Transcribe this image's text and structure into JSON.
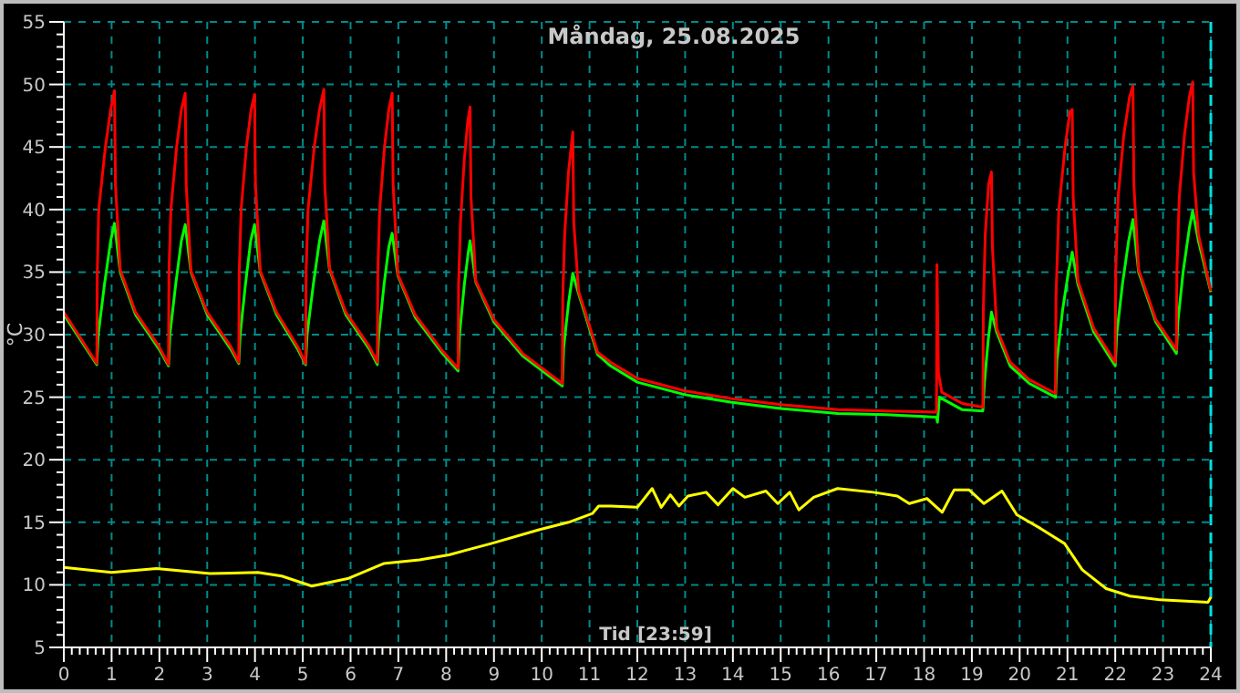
{
  "chart_data": {
    "type": "line",
    "title": "Måndag, 25.08.2025",
    "xlabel": "Tid [23:59]",
    "ylabel": "°C",
    "xlim": [
      0,
      24
    ],
    "xticks": [
      0,
      1,
      2,
      3,
      4,
      5,
      6,
      7,
      8,
      9,
      10,
      11,
      12,
      13,
      14,
      15,
      16,
      17,
      18,
      19,
      20,
      21,
      22,
      23,
      24
    ],
    "ylim": [
      5,
      55
    ],
    "yticks": [
      5,
      10,
      15,
      20,
      25,
      30,
      35,
      40,
      45,
      50,
      55
    ],
    "grid": true,
    "line_style": "solid",
    "marker": "none",
    "ref_lines": [
      {
        "axis": "x",
        "value": 24,
        "color": "#00e0e0",
        "line_style": "dashed"
      }
    ],
    "series": [
      {
        "color": "#ffff00",
        "x": [
          0,
          1.0,
          1.94,
          3.06,
          4.06,
          4.56,
          5.19,
          5.94,
          6.69,
          7.44,
          8.06,
          8.94,
          9.94,
          10.56,
          11.06,
          11.19,
          11.44,
          12.0,
          12.31,
          12.5,
          12.69,
          12.87,
          13.06,
          13.44,
          13.69,
          14.0,
          14.25,
          14.69,
          14.94,
          15.19,
          15.38,
          15.69,
          16.19,
          16.94,
          17.44,
          17.69,
          18.06,
          18.38,
          18.63,
          18.94,
          19.25,
          19.63,
          19.94,
          20.44,
          20.94,
          21.31,
          21.81,
          22.31,
          22.94,
          23.94,
          24.0
        ],
        "values": [
          11.4,
          11.0,
          11.3,
          10.9,
          11.0,
          10.7,
          9.9,
          10.5,
          11.7,
          12.0,
          12.4,
          13.3,
          14.4,
          15.0,
          15.7,
          16.3,
          16.3,
          16.2,
          17.7,
          16.2,
          17.2,
          16.3,
          17.1,
          17.4,
          16.4,
          17.7,
          17.0,
          17.5,
          16.5,
          17.4,
          16.0,
          17.0,
          17.7,
          17.4,
          17.1,
          16.5,
          16.9,
          15.8,
          17.6,
          17.6,
          16.5,
          17.5,
          15.6,
          14.5,
          13.3,
          11.2,
          9.7,
          9.1,
          8.8,
          8.6,
          9.0
        ]
      },
      {
        "color": "#00ff00",
        "x": [
          0,
          0.69,
          0.72,
          0.85,
          0.98,
          1.06,
          1.18,
          1.5,
          2.0,
          2.19,
          2.22,
          2.34,
          2.46,
          2.54,
          2.66,
          3.0,
          3.5,
          3.66,
          3.69,
          3.8,
          3.91,
          3.99,
          4.11,
          4.45,
          4.9,
          5.06,
          5.09,
          5.22,
          5.35,
          5.44,
          5.56,
          5.9,
          6.4,
          6.56,
          6.59,
          6.7,
          6.8,
          6.87,
          6.99,
          7.35,
          7.9,
          8.25,
          8.28,
          8.38,
          8.46,
          8.5,
          8.62,
          9.0,
          9.6,
          10.43,
          10.46,
          10.56,
          10.65,
          10.77,
          11.17,
          11.44,
          12.0,
          13.0,
          13.95,
          15.0,
          16.2,
          17.2,
          18.26,
          18.28,
          18.32,
          18.8,
          19.23,
          19.26,
          19.34,
          19.41,
          19.52,
          19.8,
          20.2,
          20.75,
          20.78,
          20.9,
          21.02,
          21.1,
          21.22,
          21.55,
          22.0,
          22.03,
          22.15,
          22.28,
          22.37,
          22.49,
          22.85,
          23.28,
          23.31,
          23.42,
          23.55,
          23.62,
          23.74,
          24.0
        ],
        "values": [
          31.6,
          27.6,
          30,
          34,
          37.5,
          38.9,
          35.0,
          31.6,
          28.8,
          27.5,
          30,
          34,
          37.5,
          38.8,
          35,
          31.6,
          28.8,
          27.7,
          30,
          34,
          37.5,
          38.8,
          35,
          31.6,
          28.8,
          27.6,
          30,
          34,
          37.5,
          39.1,
          35.2,
          31.6,
          28.8,
          27.6,
          30,
          34,
          37.0,
          38.1,
          34.7,
          31.4,
          28.6,
          27.1,
          30,
          34,
          36.5,
          37.5,
          34.2,
          31.0,
          28.3,
          25.9,
          29,
          32.5,
          34.9,
          33.3,
          28.4,
          27.5,
          26.2,
          25.2,
          24.6,
          24.1,
          23.7,
          23.6,
          23.4,
          23.0,
          25.0,
          24.0,
          23.9,
          26,
          29.5,
          31.8,
          30.2,
          27.5,
          26.1,
          25.0,
          28,
          32,
          35,
          36.6,
          34.0,
          30.2,
          27.5,
          30,
          34,
          37.5,
          39.2,
          35,
          31.0,
          28.5,
          31,
          35,
          38.5,
          39.9,
          37.5,
          33.4
        ]
      },
      {
        "color": "#ff0000",
        "x": [
          0,
          0.69,
          0.7,
          0.73,
          0.87,
          0.98,
          1.06,
          1.08,
          1.18,
          1.5,
          2.0,
          2.19,
          2.2,
          2.24,
          2.36,
          2.46,
          2.54,
          2.56,
          2.66,
          3.0,
          3.5,
          3.66,
          3.67,
          3.71,
          3.82,
          3.92,
          3.99,
          4.01,
          4.11,
          4.45,
          4.9,
          5.06,
          5.07,
          5.11,
          5.24,
          5.35,
          5.44,
          5.46,
          5.56,
          5.9,
          6.4,
          6.56,
          6.57,
          6.61,
          6.71,
          6.8,
          6.87,
          6.89,
          6.99,
          7.35,
          7.9,
          8.25,
          8.26,
          8.3,
          8.38,
          8.45,
          8.5,
          8.52,
          8.62,
          9.0,
          9.6,
          10.43,
          10.44,
          10.48,
          10.56,
          10.65,
          10.67,
          10.77,
          11.17,
          11.44,
          12.0,
          13.0,
          13.95,
          15.0,
          16.2,
          17.2,
          18.26,
          18.27,
          18.3,
          18.37,
          18.8,
          19.23,
          19.24,
          19.28,
          19.35,
          19.41,
          19.43,
          19.52,
          19.8,
          20.2,
          20.75,
          20.76,
          20.82,
          20.95,
          21.05,
          21.1,
          21.12,
          21.22,
          21.55,
          22.0,
          22.01,
          22.06,
          22.18,
          22.3,
          22.37,
          22.39,
          22.49,
          22.85,
          23.28,
          23.29,
          23.34,
          23.45,
          23.55,
          23.62,
          23.64,
          23.74,
          24.0
        ],
        "values": [
          31.8,
          27.7,
          35,
          40,
          45,
          48,
          49.5,
          42,
          35.2,
          31.8,
          29.0,
          27.6,
          35,
          40,
          45,
          48,
          49.3,
          42,
          35.1,
          31.8,
          29.0,
          27.8,
          35,
          40,
          45,
          48,
          49.2,
          42,
          35.1,
          31.8,
          29.0,
          27.7,
          35,
          40,
          45,
          48,
          49.6,
          42,
          35.3,
          31.8,
          29.0,
          27.8,
          35,
          40,
          45,
          48,
          49.3,
          42,
          34.8,
          31.6,
          28.8,
          27.3,
          34,
          39,
          44,
          47,
          48.2,
          41,
          34.3,
          31.2,
          28.5,
          26.1,
          33,
          38,
          43,
          46.2,
          39,
          33.5,
          28.6,
          27.8,
          26.5,
          25.5,
          24.9,
          24.4,
          24.0,
          23.9,
          23.8,
          35.6,
          27,
          25.4,
          24.5,
          24.2,
          32,
          38,
          42,
          43.0,
          37,
          30.5,
          27.8,
          26.4,
          25.3,
          33,
          40,
          45,
          47.8,
          48.0,
          41,
          34.3,
          30.5,
          27.8,
          35,
          41,
          46,
          49,
          49.9,
          42,
          35.2,
          31.2,
          28.8,
          35,
          41,
          46,
          49,
          50.2,
          43,
          38,
          33.5
        ]
      }
    ]
  }
}
